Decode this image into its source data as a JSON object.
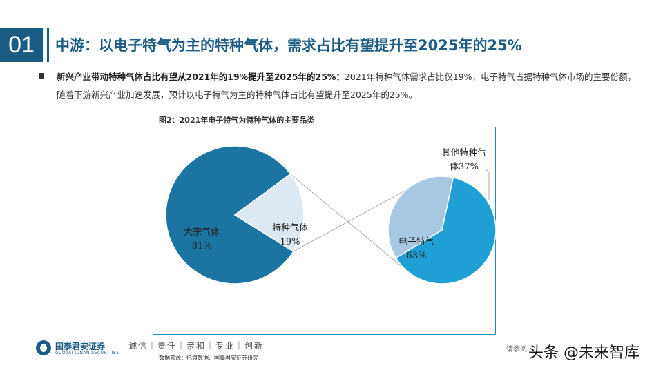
{
  "header": {
    "section_number": "01",
    "title": "中游：以电子特气为主的特种气体，需求占比有望提升至2025年的25%"
  },
  "bullet": {
    "lead": "新兴产业带动特种气体占比有望从2021年的19%提升至2025年的25%：",
    "body": "2021年特种气体需求占比仅19%，电子特气占据特种气体市场的主要份额，随着下游新兴产业加速发展，预计以电子特气为主的特种气体占比有望提升至2025年的25%。"
  },
  "figure": {
    "caption": "图2：2021年电子特气为特种气体的主要品类"
  },
  "chart_data": [
    {
      "type": "pie",
      "title": "",
      "slices": [
        {
          "label": "大宗气体",
          "value": 81,
          "label_text": "81%",
          "color": "#1b74a2"
        },
        {
          "label": "特种气体",
          "value": 19,
          "label_text": "19%",
          "color": "#dce9f3"
        }
      ]
    },
    {
      "type": "pie",
      "title": "",
      "slices": [
        {
          "label": "电子特气",
          "value": 63,
          "label_text": "63%",
          "color": "#1f9fd4"
        },
        {
          "label": "其他特种气体",
          "label_lines": [
            "其他特种气",
            "体37%"
          ],
          "value": 37,
          "label_text": "37%",
          "color": "#a8c8e2"
        }
      ]
    }
  ],
  "footer": {
    "company_cn": "国泰君安证券",
    "company_en": "GUOTAI JUNAN SECURITIES",
    "slogan": "诚信｜责任｜亲和｜专业｜创新",
    "source": "数据来源：亿渡数据、国泰君安证券研究",
    "notice": "请参阅",
    "watermark": "头条 @未来智库"
  }
}
